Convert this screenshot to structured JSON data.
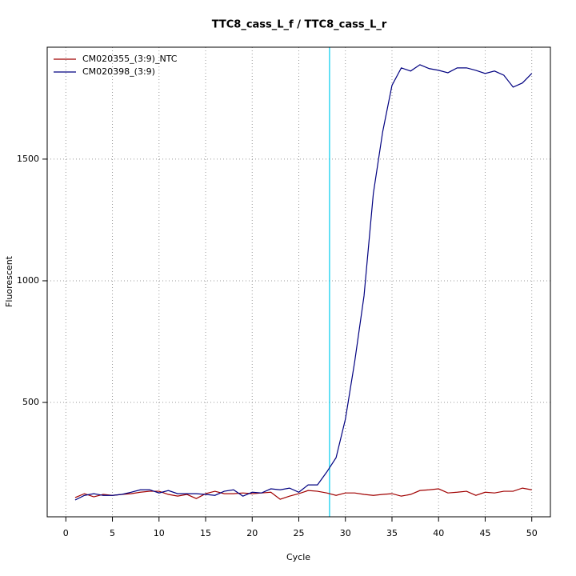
{
  "chart_data": {
    "type": "line",
    "title": "TTC8_cass_L_f / TTC8_cass_L_r",
    "x_label": "Cycle",
    "y_label": "Fluorescent",
    "x": [
      1,
      2,
      3,
      4,
      5,
      6,
      7,
      8,
      9,
      10,
      11,
      12,
      13,
      14,
      15,
      16,
      17,
      18,
      19,
      20,
      21,
      22,
      23,
      24,
      25,
      26,
      27,
      28,
      29,
      30,
      31,
      32,
      33,
      34,
      35,
      36,
      37,
      38,
      39,
      40,
      41,
      42,
      43,
      44,
      45,
      46,
      47,
      48,
      49,
      50
    ],
    "series": [
      {
        "name": "CM020355_(3:9)_NTC",
        "color": "#a00000",
        "values": [
          109,
          125,
          112,
          122,
          118,
          122,
          125,
          131,
          135,
          135,
          122,
          115,
          122,
          105,
          125,
          135,
          125,
          125,
          128,
          125,
          128,
          131,
          102,
          115,
          125,
          138,
          135,
          128,
          118,
          128,
          128,
          122,
          118,
          122,
          125,
          115,
          122,
          138,
          141,
          145,
          128,
          131,
          135,
          118,
          131,
          128,
          135,
          135,
          148,
          141
        ]
      },
      {
        "name": "CM020398_(3:9)",
        "color": "#000080",
        "values": [
          99,
          118,
          125,
          118,
          118,
          122,
          131,
          141,
          141,
          128,
          138,
          125,
          125,
          125,
          122,
          118,
          135,
          141,
          115,
          131,
          128,
          145,
          141,
          148,
          131,
          161,
          161,
          214,
          273,
          431,
          668,
          938,
          1359,
          1612,
          1803,
          1875,
          1862,
          1888,
          1872,
          1865,
          1855,
          1875,
          1875,
          1865,
          1852,
          1862,
          1845,
          1796,
          1813,
          1852
        ]
      }
    ],
    "threshold_cycle": 28.3,
    "threshold_color": "#00ccee",
    "xlim": [
      -2,
      52
    ],
    "xticks": [
      0,
      5,
      10,
      15,
      20,
      25,
      30,
      35,
      40,
      45,
      50
    ],
    "ylim": [
      30,
      1960
    ],
    "yticks": [
      500,
      1000,
      1500
    ],
    "grid": true,
    "legend": "top-left"
  }
}
